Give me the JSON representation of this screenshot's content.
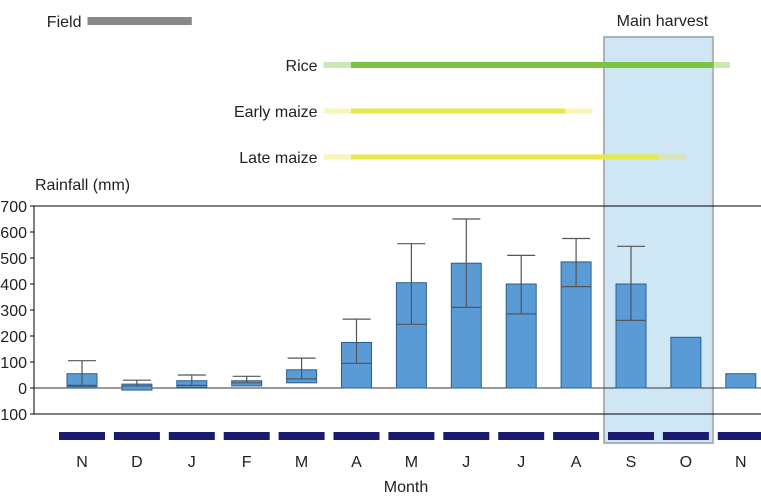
{
  "chart_data": {
    "type": "bar",
    "xlabel": "Month",
    "ylabel": "Rainfall (mm)",
    "ylim": [
      -100,
      700
    ],
    "yticks": [
      -100,
      0,
      100,
      200,
      300,
      400,
      500,
      600,
      700
    ],
    "yticks_labels": [
      "−100",
      "0",
      "100",
      "200",
      "300",
      "400",
      "500",
      "600",
      "700"
    ],
    "grid": false,
    "categories": [
      "N",
      "D",
      "J",
      "F",
      "M",
      "A",
      "M",
      "J",
      "J",
      "A",
      "S",
      "O",
      "N"
    ],
    "values": [
      55,
      15,
      28,
      28,
      70,
      175,
      405,
      480,
      400,
      485,
      400,
      195,
      55
    ],
    "box_low": [
      5,
      -8,
      2,
      8,
      20,
      0,
      0,
      0,
      0,
      0,
      0,
      0,
      0
    ],
    "median": [
      10,
      8,
      10,
      20,
      35,
      95,
      245,
      310,
      285,
      390,
      260,
      null,
      null
    ],
    "whisker_high": [
      105,
      30,
      50,
      45,
      115,
      265,
      555,
      650,
      510,
      575,
      545,
      null,
      null
    ],
    "colors": {
      "bar": "#5b9bd5",
      "bar_edge": "#2b5f8e",
      "harvest": "#cfe6f5",
      "field": "#888888",
      "rice": "#7ec242",
      "maize": "#e6e84a",
      "month_strip": "#1a1a6e"
    },
    "crop_periods": [
      {
        "label": "Field",
        "start": 0.1,
        "end": 2.0,
        "color": "#888888"
      },
      {
        "label": "Rice",
        "start": 4.9,
        "end": 11.5,
        "fade_start": 4.4,
        "fade_end": 11.8,
        "color": "#7ec242"
      },
      {
        "label": "Early maize",
        "start": 4.9,
        "end": 8.8,
        "fade_start": 4.4,
        "fade_end": 9.3,
        "color": "#e6e84a"
      },
      {
        "label": "Late maize",
        "start": 4.9,
        "end": 10.5,
        "fade_start": 4.4,
        "fade_end": 11.0,
        "color": "#e6e84a"
      }
    ],
    "annotations": [
      {
        "text": "Main harvest",
        "from_category": 10,
        "to_category": 11
      }
    ]
  }
}
